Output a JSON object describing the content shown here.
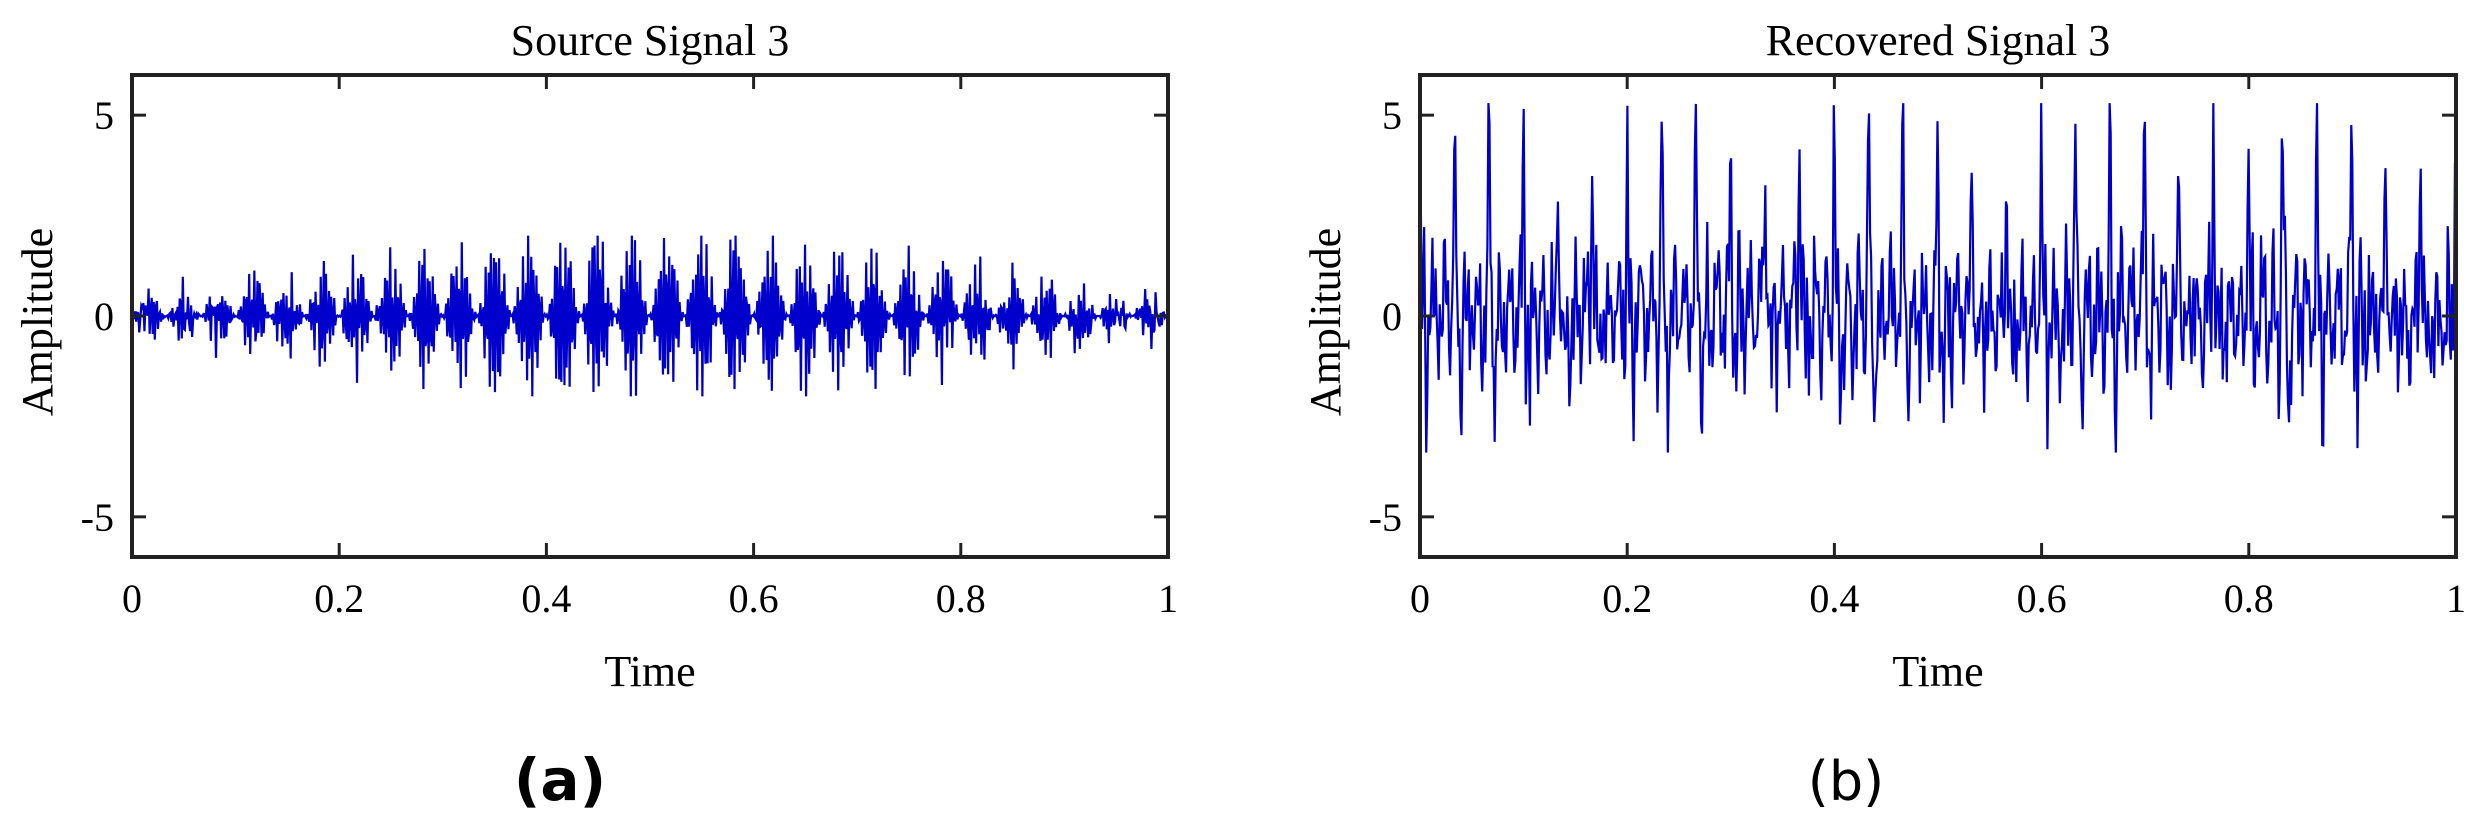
{
  "chart_data": [
    {
      "type": "line",
      "panel_label": "(a)",
      "title": "Source Signal 3",
      "xlabel": "Time",
      "ylabel": "Amplitude",
      "xlim": [
        0,
        1
      ],
      "ylim": [
        -6,
        6
      ],
      "xticks": [
        0,
        0.2,
        0.4,
        0.6,
        0.8,
        1
      ],
      "xtick_labels": [
        "0",
        "0.2",
        "0.4",
        "0.6",
        "0.8",
        "1"
      ],
      "yticks": [
        5,
        0,
        -5
      ],
      "ytick_labels": [
        "5",
        "0",
        "-5"
      ],
      "grid": false,
      "line_color": "#0000cc",
      "signal": {
        "kind": "bursts",
        "sample_count": 1000,
        "burst_period": 0.0333,
        "burst_peak_amplitude": 2.0,
        "typical_min": -2.0,
        "typical_max": 2.0
      }
    },
    {
      "type": "line",
      "panel_label": "(b)",
      "title": "Recovered Signal 3",
      "xlabel": "Time",
      "ylabel": "Amplitude",
      "xlim": [
        0,
        1
      ],
      "ylim": [
        -6,
        6
      ],
      "xticks": [
        0,
        0.2,
        0.4,
        0.6,
        0.8,
        1
      ],
      "xtick_labels": [
        "0",
        "0.2",
        "0.4",
        "0.6",
        "0.8",
        "1"
      ],
      "yticks": [
        5,
        0,
        -5
      ],
      "ytick_labels": [
        "5",
        "0",
        "-5"
      ],
      "grid": false,
      "line_color": "#0000cc",
      "signal": {
        "kind": "periodic-spikes",
        "sample_count": 1000,
        "spike_period": 0.0333,
        "spike_peak": 5.2,
        "typical_min": -3.4,
        "typical_max": 5.3
      }
    }
  ]
}
